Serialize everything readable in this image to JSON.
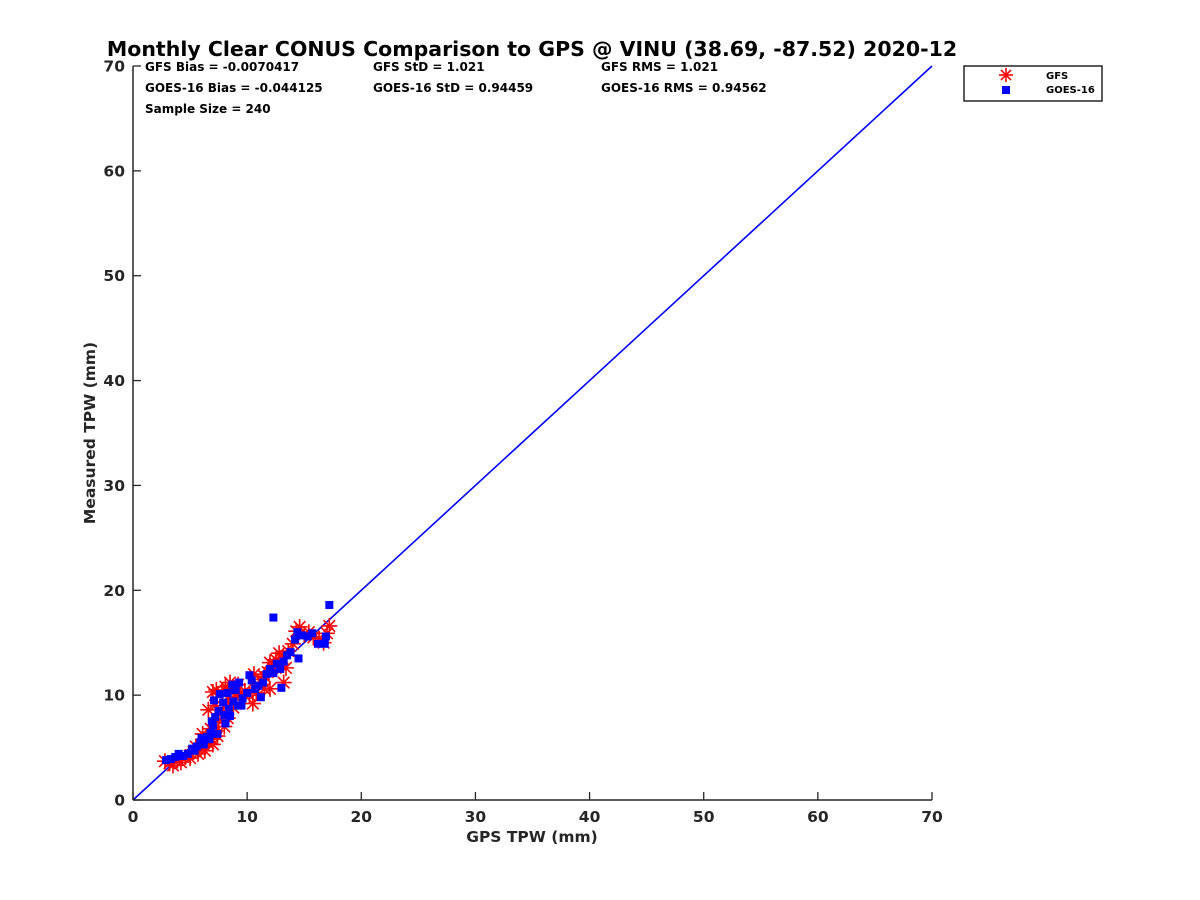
{
  "chart_data": {
    "type": "scatter",
    "title": "Monthly Clear CONUS Comparison to GPS @ VINU (38.69, -87.52) 2020-12",
    "xlabel": "GPS TPW (mm)",
    "ylabel": "Measured TPW (mm)",
    "xlim": [
      0,
      70
    ],
    "ylim": [
      0,
      70
    ],
    "x_ticks": [
      "0",
      "10",
      "20",
      "30",
      "40",
      "50",
      "60",
      "70"
    ],
    "y_ticks": [
      "0",
      "10",
      "20",
      "30",
      "40",
      "50",
      "60",
      "70"
    ],
    "grid": false,
    "legend_position": "outside top-right",
    "stats": [
      "GFS Bias = -0.0070417",
      "GFS StD = 1.021",
      "GFS RMS = 1.021",
      "GOES-16 Bias = -0.044125",
      "GOES-16 StD = 0.94459",
      "GOES-16 RMS = 0.94562",
      "Sample Size = 240"
    ],
    "reference_line": {
      "x": [
        0,
        70
      ],
      "y": [
        0,
        70
      ],
      "color": "#0000ff"
    },
    "series": [
      {
        "name": "GFS",
        "marker": "asterisk",
        "color": "#ff0000",
        "points": [
          [
            2.8,
            3.7
          ],
          [
            3.2,
            3.5
          ],
          [
            3.5,
            3.3
          ],
          [
            3.9,
            3.8
          ],
          [
            4.2,
            3.6
          ],
          [
            4.6,
            4.1
          ],
          [
            5.0,
            4.0
          ],
          [
            5.3,
            4.6
          ],
          [
            5.7,
            4.4
          ],
          [
            6.0,
            5.0
          ],
          [
            6.3,
            4.7
          ],
          [
            6.6,
            5.4
          ],
          [
            6.9,
            5.8
          ],
          [
            7.1,
            6.4
          ],
          [
            7.3,
            7.0
          ],
          [
            7.5,
            7.6
          ],
          [
            7.0,
            10.3
          ],
          [
            7.3,
            10.5
          ],
          [
            7.8,
            10.2
          ],
          [
            8.1,
            10.8
          ],
          [
            8.5,
            11.2
          ],
          [
            8.8,
            10.6
          ],
          [
            9.2,
            11.0
          ],
          [
            7.9,
            8.4
          ],
          [
            8.2,
            9.0
          ],
          [
            8.5,
            9.6
          ],
          [
            8.8,
            8.8
          ],
          [
            9.0,
            9.8
          ],
          [
            9.4,
            10.1
          ],
          [
            9.8,
            10.4
          ],
          [
            10.2,
            10.0
          ],
          [
            10.5,
            9.2
          ],
          [
            10.8,
            10.2
          ],
          [
            11.0,
            11.0
          ],
          [
            11.3,
            11.5
          ],
          [
            11.5,
            10.6
          ],
          [
            11.8,
            12.2
          ],
          [
            12.0,
            13.1
          ],
          [
            12.2,
            12.6
          ],
          [
            12.5,
            13.4
          ],
          [
            12.8,
            14.0
          ],
          [
            13.1,
            13.5
          ],
          [
            13.4,
            12.6
          ],
          [
            13.6,
            14.2
          ],
          [
            14.0,
            14.9
          ],
          [
            14.3,
            16.1
          ],
          [
            14.6,
            16.5
          ],
          [
            15.0,
            15.8
          ],
          [
            15.4,
            16.0
          ],
          [
            15.8,
            15.5
          ],
          [
            16.3,
            15.4
          ],
          [
            16.7,
            15.0
          ],
          [
            17.2,
            16.6
          ],
          [
            17.0,
            15.9
          ],
          [
            12.0,
            10.6
          ],
          [
            11.5,
            11.8
          ],
          [
            6.8,
            6.8
          ],
          [
            7.0,
            5.3
          ],
          [
            7.4,
            6.1
          ],
          [
            8.0,
            7.0
          ],
          [
            8.3,
            7.8
          ],
          [
            6.6,
            8.6
          ],
          [
            7.2,
            9.0
          ],
          [
            10.6,
            12.0
          ],
          [
            13.2,
            11.2
          ],
          [
            6.1,
            6.3
          ],
          [
            5.5,
            5.1
          ]
        ]
      },
      {
        "name": "GOES-16",
        "marker": "square",
        "color": "#0000ff",
        "points": [
          [
            2.9,
            3.8
          ],
          [
            3.3,
            3.9
          ],
          [
            3.7,
            4.1
          ],
          [
            4.0,
            4.4
          ],
          [
            4.4,
            4.2
          ],
          [
            4.8,
            4.4
          ],
          [
            5.2,
            4.9
          ],
          [
            5.6,
            5.1
          ],
          [
            5.9,
            5.5
          ],
          [
            6.2,
            5.3
          ],
          [
            6.5,
            6.0
          ],
          [
            6.8,
            6.4
          ],
          [
            7.0,
            7.1
          ],
          [
            7.2,
            7.9
          ],
          [
            7.5,
            8.5
          ],
          [
            7.1,
            9.5
          ],
          [
            7.6,
            10.1
          ],
          [
            7.9,
            9.3
          ],
          [
            8.3,
            10.2
          ],
          [
            8.7,
            11.0
          ],
          [
            9.0,
            10.5
          ],
          [
            9.3,
            11.2
          ],
          [
            8.0,
            8.1
          ],
          [
            8.4,
            8.7
          ],
          [
            8.8,
            9.4
          ],
          [
            9.2,
            9.0
          ],
          [
            9.6,
            9.7
          ],
          [
            10.0,
            10.2
          ],
          [
            10.4,
            11.4
          ],
          [
            10.7,
            10.6
          ],
          [
            11.0,
            10.9
          ],
          [
            11.4,
            11.2
          ],
          [
            11.7,
            12.0
          ],
          [
            12.0,
            12.5
          ],
          [
            12.3,
            12.1
          ],
          [
            12.6,
            13.0
          ],
          [
            12.9,
            12.5
          ],
          [
            13.2,
            13.2
          ],
          [
            13.5,
            13.8
          ],
          [
            13.8,
            14.1
          ],
          [
            14.2,
            15.3
          ],
          [
            14.4,
            16.0
          ],
          [
            14.8,
            15.7
          ],
          [
            15.3,
            15.6
          ],
          [
            15.7,
            15.9
          ],
          [
            16.2,
            14.9
          ],
          [
            16.8,
            14.9
          ],
          [
            16.9,
            15.6
          ],
          [
            12.3,
            17.4
          ],
          [
            17.2,
            18.6
          ],
          [
            14.5,
            13.5
          ],
          [
            13.0,
            10.7
          ],
          [
            6.9,
            7.5
          ],
          [
            7.4,
            6.3
          ],
          [
            8.1,
            7.3
          ],
          [
            8.5,
            8.0
          ],
          [
            9.5,
            9.0
          ],
          [
            10.2,
            11.9
          ],
          [
            11.2,
            9.8
          ],
          [
            6.0,
            5.9
          ],
          [
            5.4,
            4.7
          ],
          [
            6.7,
            5.8
          ]
        ]
      }
    ]
  }
}
